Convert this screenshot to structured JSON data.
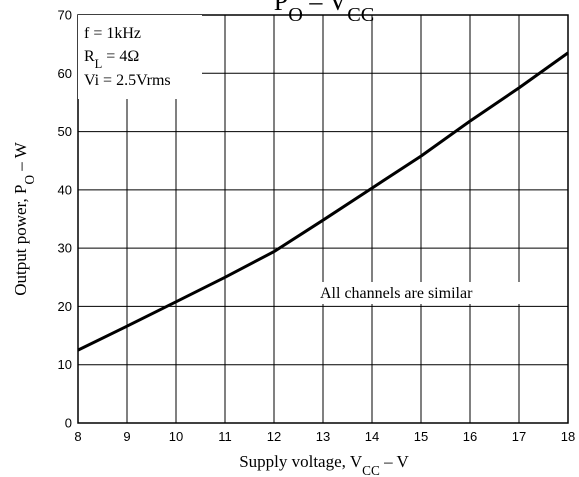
{
  "chart_data": {
    "type": "line",
    "title": {
      "parts": [
        {
          "text": "P",
          "sub": false
        },
        {
          "text": "O",
          "sub": true
        },
        {
          "text": " – V",
          "sub": false
        },
        {
          "text": "CC",
          "sub": true
        }
      ]
    },
    "xlabel": {
      "parts": [
        {
          "text": "Supply voltage, V",
          "sub": false
        },
        {
          "text": "CC",
          "sub": true
        },
        {
          "text": "  –  V",
          "sub": false
        }
      ]
    },
    "ylabel": {
      "parts": [
        {
          "text": "Output power, P",
          "sub": false
        },
        {
          "text": "O",
          "sub": true
        },
        {
          "text": "  –  W",
          "sub": false
        }
      ]
    },
    "xlim": [
      8,
      18
    ],
    "ylim": [
      0,
      70
    ],
    "x_ticks": [
      8,
      9,
      10,
      11,
      12,
      13,
      14,
      15,
      16,
      17,
      18
    ],
    "y_ticks": [
      0,
      10,
      20,
      30,
      40,
      50,
      60,
      70
    ],
    "grid": true,
    "conditions": [
      {
        "parts": [
          {
            "text": "f = 1kHz",
            "sub": false
          }
        ]
      },
      {
        "parts": [
          {
            "text": "R",
            "sub": false
          },
          {
            "text": "L",
            "sub": true
          },
          {
            "text": " = 4Ω",
            "sub": false
          }
        ]
      },
      {
        "parts": [
          {
            "text": "Vi = 2.5Vrms",
            "sub": false
          }
        ]
      }
    ],
    "annotation": "All channels are similar",
    "series": [
      {
        "x": [
          8,
          9,
          10,
          11,
          12,
          13,
          14,
          15,
          16,
          17,
          18
        ],
        "y": [
          12.5,
          16.6,
          20.8,
          25.0,
          29.4,
          34.8,
          40.3,
          45.8,
          51.8,
          57.5,
          63.5
        ]
      }
    ],
    "colors": {
      "line": "#000000",
      "grid": "#000000",
      "background": "#ffffff"
    }
  }
}
